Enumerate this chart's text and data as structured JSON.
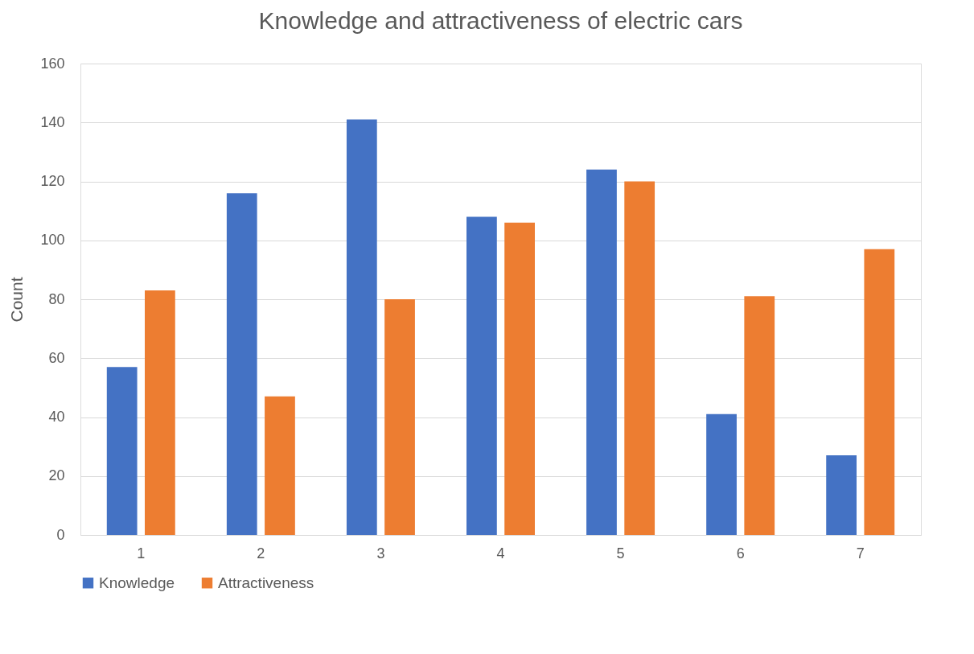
{
  "chart_data": {
    "type": "bar",
    "title": "Knowledge and attractiveness of electric cars",
    "ylabel": "Count",
    "categories": [
      "1",
      "2",
      "3",
      "4",
      "5",
      "6",
      "7"
    ],
    "series": [
      {
        "name": "Knowledge",
        "color": "#4472c4",
        "values": [
          57,
          116,
          141,
          108,
          124,
          41,
          27
        ]
      },
      {
        "name": "Attractiveness",
        "color": "#ed7d31",
        "values": [
          83,
          47,
          80,
          106,
          120,
          81,
          97
        ]
      }
    ],
    "ylim": [
      0,
      160
    ],
    "yticks": [
      0,
      20,
      40,
      60,
      80,
      100,
      120,
      140,
      160
    ],
    "grid": "y",
    "legend": "bottom"
  }
}
